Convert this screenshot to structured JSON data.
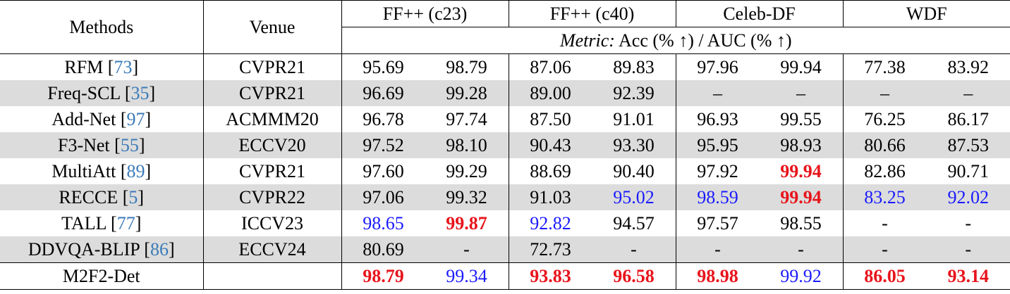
{
  "table": {
    "header": [
      "Methods",
      "Venue",
      "FF++ (c23)",
      "FF++ (c40)",
      "Celeb-DF",
      "WDF"
    ],
    "metric_label": "Metric:",
    "metric": "Acc (% ↑) / AUC (% ↑)",
    "rows": [
      {
        "method": "RFM",
        "ref": "73",
        "venue": "CVPR21",
        "values": [
          "95.69",
          "98.79",
          "87.06",
          "89.83",
          "97.96",
          "99.94",
          "77.38",
          "83.92"
        ]
      },
      {
        "method": "Freq-SCL",
        "ref": "35",
        "venue": "CVPR21",
        "values": [
          "96.69",
          "99.28",
          "89.00",
          "92.39",
          "–",
          "–",
          "–",
          "–"
        ]
      },
      {
        "method": "Add-Net",
        "ref": "97",
        "venue": "ACMMM20",
        "values": [
          "96.78",
          "97.74",
          "87.50",
          "91.01",
          "96.93",
          "99.55",
          "76.25",
          "86.17"
        ]
      },
      {
        "method": "F3-Net",
        "ref": "55",
        "venue": "ECCV20",
        "values": [
          "97.52",
          "98.10",
          "90.43",
          "93.30",
          "95.95",
          "98.93",
          "80.66",
          "87.53"
        ]
      },
      {
        "method": "MultiAtt",
        "ref": "89",
        "venue": "CVPR21",
        "values": [
          "97.60",
          "99.29",
          "88.69",
          "90.40",
          "97.92",
          "99.94",
          "82.86",
          "90.71"
        ]
      },
      {
        "method": "RECCE",
        "ref": "5",
        "venue": "CVPR22",
        "values": [
          "97.06",
          "99.32",
          "91.03",
          "95.02",
          "98.59",
          "99.94",
          "83.25",
          "92.02"
        ]
      },
      {
        "method": "TALL",
        "ref": "77",
        "venue": "ICCV23",
        "values": [
          "98.65",
          "99.87",
          "92.82",
          "94.57",
          "97.57",
          "98.55",
          "-",
          "-"
        ]
      },
      {
        "method": "DDVQA-BLIP",
        "ref": "86",
        "venue": "ECCV24",
        "values": [
          "80.69",
          "-",
          "72.73",
          "-",
          "-",
          "-",
          "-",
          "-"
        ]
      },
      {
        "method": "M2F2-Det",
        "ref": null,
        "venue": null,
        "values": [
          "98.79",
          "99.34",
          "93.83",
          "96.58",
          "98.98",
          "99.92",
          "86.05",
          "93.14"
        ]
      }
    ]
  }
}
